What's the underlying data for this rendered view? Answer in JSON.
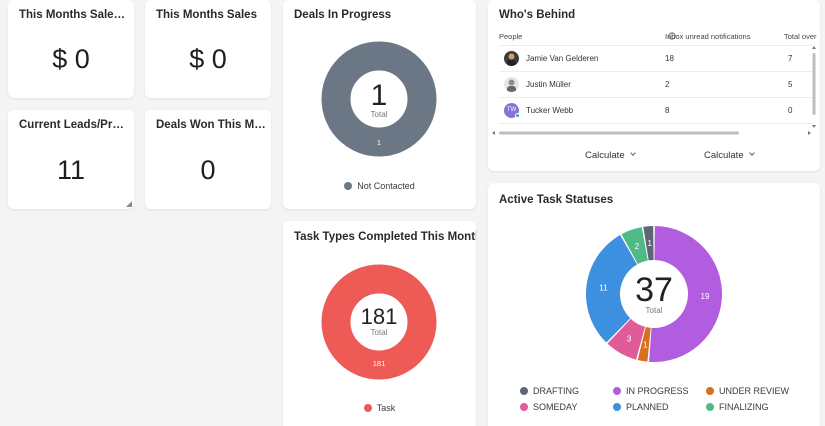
{
  "cards": {
    "sales1": {
      "title": "This Months Sales ...",
      "value": "$ 0"
    },
    "sales2": {
      "title": "This Months Sales",
      "value": "$ 0"
    },
    "leads": {
      "title": "Current Leads/Pros...",
      "value": "11"
    },
    "won": {
      "title": "Deals Won This Mo...",
      "value": "0"
    }
  },
  "deals": {
    "title": "Deals In Progress",
    "center_value": "1",
    "center_label": "Total",
    "slice_label": "1",
    "legend": [
      {
        "label": "Not Contacted",
        "color": "#6b7785"
      }
    ]
  },
  "tasks": {
    "title": "Task Types Completed This Month",
    "center_value": "181",
    "center_label": "Total",
    "slice_label": "181",
    "legend": [
      {
        "label": "Task",
        "color": "#ee5a55"
      }
    ]
  },
  "behind": {
    "title": "Who's Behind",
    "columns": [
      "People",
      "Inbox unread notifications",
      "Total over"
    ],
    "info_icon": "info-icon",
    "rows": [
      {
        "name": "Jamie Van Gelderen",
        "unread": "18",
        "total": "7",
        "avatar": "photo"
      },
      {
        "name": "Justin Müller",
        "unread": "2",
        "total": "5",
        "avatar": "photo"
      },
      {
        "name": "Tucker Webb",
        "unread": "8",
        "total": "0",
        "avatar": "initials",
        "initials": "TW",
        "avatar_color": "#8b6fd6"
      }
    ],
    "calc": [
      "Calculate",
      "Calculate"
    ]
  },
  "statuses": {
    "title": "Active Task Statuses",
    "center_value": "37",
    "center_label": "Total"
  },
  "chart_data": [
    {
      "type": "pie",
      "title": "Deals In Progress",
      "categories": [
        "Not Contacted"
      ],
      "values": [
        1
      ],
      "colors": [
        "#6b7785"
      ],
      "total": 1
    },
    {
      "type": "pie",
      "title": "Task Types Completed This Month",
      "categories": [
        "Task"
      ],
      "values": [
        181
      ],
      "colors": [
        "#ee5a55"
      ],
      "total": 181
    },
    {
      "type": "pie",
      "title": "Active Task Statuses",
      "categories": [
        "DRAFTING",
        "IN PROGRESS",
        "UNDER REVIEW",
        "SOMEDAY",
        "PLANNED",
        "FINALIZING"
      ],
      "values": [
        1,
        19,
        1,
        3,
        11,
        2
      ],
      "colors": [
        "#5d6672",
        "#b25de0",
        "#d9701f",
        "#e05c98",
        "#3d8fe0",
        "#4fba86"
      ],
      "total": 37
    }
  ]
}
